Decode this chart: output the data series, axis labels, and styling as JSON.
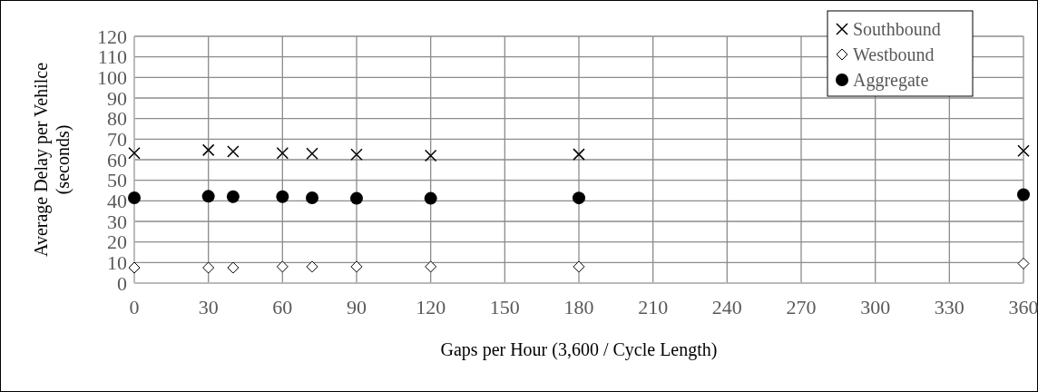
{
  "chart_data": {
    "type": "scatter",
    "xlabel": "Gaps per Hour (3,600 / Cycle Length)",
    "ylabel": "Average Delay per Vehilce (seconds)",
    "xlim": [
      0,
      360
    ],
    "xticks": [
      0,
      30,
      60,
      90,
      120,
      150,
      180,
      210,
      240,
      270,
      300,
      330,
      360
    ],
    "ylim": [
      0,
      120
    ],
    "yticks": [
      0,
      10,
      20,
      30,
      40,
      50,
      60,
      70,
      80,
      90,
      100,
      110,
      120
    ],
    "grid": true,
    "legend": "top right",
    "x": [
      0,
      30,
      40,
      60,
      72,
      90,
      120,
      180,
      360
    ],
    "series": [
      {
        "name": "Southbound",
        "color": "#000000",
        "marker": "cross",
        "values": [
          63.2,
          64.7,
          64,
          63.2,
          63,
          62.5,
          62,
          62.6,
          64.3
        ]
      },
      {
        "name": "Westbound",
        "color": "#000000",
        "marker": "diamond",
        "values": [
          7.5,
          7.5,
          7.5,
          8,
          8,
          8,
          8,
          8,
          9.5
        ]
      },
      {
        "name": "Aggregate",
        "color": "#000000",
        "marker": "circle",
        "values": [
          41.5,
          42.2,
          42,
          42,
          41.5,
          41.2,
          41.2,
          41.4,
          43
        ]
      }
    ]
  }
}
